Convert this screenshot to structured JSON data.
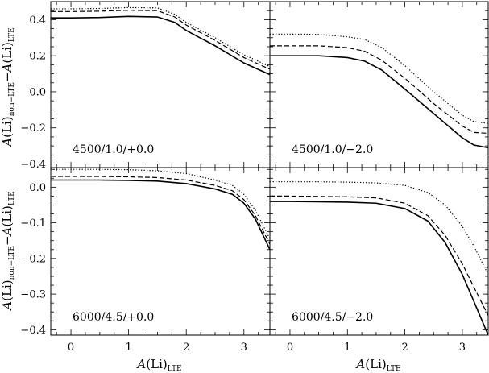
{
  "chart_data": [
    {
      "type": "line",
      "panel_label": "4500/1.0/+0.0",
      "xlim": [
        -0.35,
        3.45
      ],
      "ylim": [
        -0.42,
        0.5
      ],
      "yticks": [
        -0.4,
        -0.2,
        0.0,
        0.2,
        0.4
      ],
      "ytick_labels": [
        "−0.4",
        "−0.2",
        "0.0",
        "0.2",
        "0.4"
      ],
      "series": [
        {
          "style": "solid",
          "x": [
            -0.35,
            0.0,
            0.5,
            1.0,
            1.5,
            1.8,
            2.0,
            2.5,
            3.0,
            3.45
          ],
          "y": [
            0.41,
            0.41,
            0.412,
            0.418,
            0.415,
            0.385,
            0.34,
            0.255,
            0.16,
            0.095
          ]
        },
        {
          "style": "dashed",
          "x": [
            -0.35,
            0.0,
            0.5,
            1.0,
            1.5,
            1.8,
            2.0,
            2.5,
            3.0,
            3.45
          ],
          "y": [
            0.445,
            0.445,
            0.447,
            0.452,
            0.45,
            0.415,
            0.37,
            0.285,
            0.19,
            0.125
          ]
        },
        {
          "style": "dotted",
          "x": [
            -0.35,
            0.0,
            0.5,
            1.0,
            1.5,
            1.8,
            2.0,
            2.5,
            3.0,
            3.45
          ],
          "y": [
            0.46,
            0.46,
            0.462,
            0.467,
            0.465,
            0.43,
            0.385,
            0.3,
            0.205,
            0.14
          ]
        }
      ]
    },
    {
      "type": "line",
      "panel_label": "4500/1.0/−2.0",
      "xlim": [
        -0.35,
        3.45
      ],
      "ylim": [
        -0.42,
        0.5
      ],
      "series": [
        {
          "style": "solid",
          "x": [
            -0.35,
            0.0,
            0.5,
            1.0,
            1.3,
            1.6,
            2.0,
            2.5,
            3.0,
            3.2,
            3.45
          ],
          "y": [
            0.2,
            0.2,
            0.2,
            0.19,
            0.17,
            0.12,
            0.015,
            -0.12,
            -0.255,
            -0.295,
            -0.31
          ]
        },
        {
          "style": "dashed",
          "x": [
            -0.35,
            0.0,
            0.5,
            1.0,
            1.3,
            1.6,
            2.0,
            2.5,
            3.0,
            3.2,
            3.45
          ],
          "y": [
            0.255,
            0.255,
            0.255,
            0.245,
            0.225,
            0.175,
            0.075,
            -0.065,
            -0.19,
            -0.225,
            -0.23
          ]
        },
        {
          "style": "dotted",
          "x": [
            -0.35,
            0.0,
            0.5,
            1.0,
            1.3,
            1.6,
            2.0,
            2.5,
            3.0,
            3.2,
            3.45
          ],
          "y": [
            0.32,
            0.32,
            0.318,
            0.305,
            0.29,
            0.245,
            0.145,
            0.0,
            -0.13,
            -0.165,
            -0.175
          ]
        }
      ]
    },
    {
      "type": "line",
      "panel_label": "6000/4.5/+0.0",
      "xlim": [
        -0.35,
        3.45
      ],
      "ylim": [
        -0.415,
        0.055
      ],
      "yticks": [
        -0.4,
        -0.3,
        -0.2,
        -0.1,
        0.0
      ],
      "ytick_labels": [
        "−0.4",
        "−0.3",
        "−0.2",
        "−0.1",
        "0.0"
      ],
      "series": [
        {
          "style": "solid",
          "x": [
            -0.35,
            0.0,
            0.5,
            1.0,
            1.5,
            2.0,
            2.5,
            2.8,
            3.0,
            3.2,
            3.45
          ],
          "y": [
            0.02,
            0.02,
            0.02,
            0.019,
            0.017,
            0.01,
            -0.005,
            -0.02,
            -0.045,
            -0.09,
            -0.175
          ]
        },
        {
          "style": "dashed",
          "x": [
            -0.35,
            0.0,
            0.5,
            1.0,
            1.5,
            2.0,
            2.5,
            2.8,
            3.0,
            3.2,
            3.45
          ],
          "y": [
            0.03,
            0.03,
            0.03,
            0.029,
            0.027,
            0.02,
            0.005,
            -0.01,
            -0.035,
            -0.08,
            -0.16
          ]
        },
        {
          "style": "dotted",
          "x": [
            -0.35,
            0.0,
            0.5,
            1.0,
            1.5,
            2.0,
            2.5,
            2.8,
            3.0,
            3.2,
            3.45
          ],
          "y": [
            0.05,
            0.05,
            0.05,
            0.049,
            0.046,
            0.038,
            0.02,
            0.005,
            -0.02,
            -0.065,
            -0.145
          ]
        }
      ]
    },
    {
      "type": "line",
      "panel_label": "6000/4.5/−2.0",
      "xlim": [
        -0.35,
        3.45
      ],
      "ylim": [
        -0.415,
        0.055
      ],
      "series": [
        {
          "style": "solid",
          "x": [
            -0.35,
            0.0,
            0.5,
            1.0,
            1.5,
            2.0,
            2.4,
            2.7,
            3.0,
            3.2,
            3.45
          ],
          "y": [
            -0.04,
            -0.04,
            -0.041,
            -0.042,
            -0.045,
            -0.06,
            -0.095,
            -0.155,
            -0.245,
            -0.32,
            -0.415
          ]
        },
        {
          "style": "dashed",
          "x": [
            -0.35,
            0.0,
            0.5,
            1.0,
            1.5,
            2.0,
            2.4,
            2.7,
            3.0,
            3.2,
            3.45
          ],
          "y": [
            -0.025,
            -0.025,
            -0.026,
            -0.027,
            -0.03,
            -0.045,
            -0.08,
            -0.135,
            -0.215,
            -0.28,
            -0.36
          ]
        },
        {
          "style": "dotted",
          "x": [
            -0.35,
            0.0,
            0.5,
            1.0,
            1.5,
            2.0,
            2.4,
            2.7,
            3.0,
            3.2,
            3.45
          ],
          "y": [
            0.015,
            0.015,
            0.015,
            0.014,
            0.012,
            0.005,
            -0.015,
            -0.05,
            -0.11,
            -0.165,
            -0.245
          ]
        }
      ]
    }
  ],
  "x_axis": {
    "ticks": [
      0,
      1,
      2,
      3
    ],
    "tick_labels": [
      "0",
      "1",
      "2",
      "3"
    ],
    "title_main": "A",
    "title_mid": "(Li)",
    "title_sub": "LTE"
  },
  "y_axis": {
    "title_main": "A",
    "title_mid": "(Li)",
    "title_sub1": "non−LTE",
    "title_dash": "−",
    "title_main2": "A",
    "title_mid2": "(Li)",
    "title_sub2": "LTE"
  }
}
